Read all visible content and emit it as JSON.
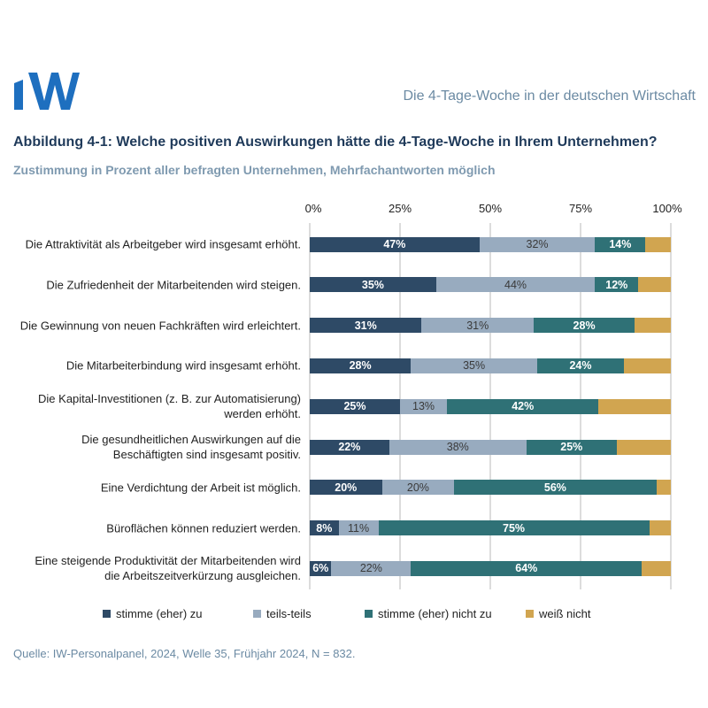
{
  "header": {
    "logo_text": "IW",
    "title": "Die 4-Tage-Woche in der deutschen Wirtschaft"
  },
  "figure": {
    "title": "Abbildung 4-1: Welche positiven Auswirkungen hätte die 4-Tage-Woche in Ihrem Unternehmen?",
    "subtitle": "Zustimmung in Prozent aller befragten Unternehmen, Mehrfachantworten möglich",
    "source": "Quelle: IW-Personalpanel, 2024, Welle 35, Frühjahr 2024, N = 832."
  },
  "chart_data": {
    "type": "bar",
    "orientation": "horizontal",
    "stacked": true,
    "xlim": [
      0,
      100
    ],
    "x_ticks": [
      "0%",
      "25%",
      "50%",
      "75%",
      "100%"
    ],
    "grid": true,
    "legend_position": "bottom",
    "categories": [
      "Die Attraktivität als Arbeitgeber wird insgesamt erhöht.",
      "Die Zufriedenheit der Mitarbeitenden wird steigen.",
      "Die Gewinnung von neuen Fachkräften wird erleichtert.",
      "Die Mitarbeiterbindung wird insgesamt erhöht.",
      "Die Kapital-Investitionen (z. B. zur Automatisierung) werden erhöht.",
      "Die gesundheitlichen Auswirkungen auf die Beschäftigten sind insgesamt positiv.",
      "Eine Verdichtung der Arbeit ist möglich.",
      "Büroflächen können reduziert werden.",
      "Eine steigende Produktivität der Mitarbeitenden wird die Arbeitszeitverkürzung ausgleichen."
    ],
    "series": [
      {
        "name": "stimme (eher) zu",
        "color": "#2e4a66",
        "label_color": "#ffffff",
        "values": [
          47,
          35,
          31,
          28,
          25,
          22,
          20,
          8,
          6
        ],
        "labels_shown": true
      },
      {
        "name": "teils-teils",
        "color": "#98abbf",
        "label_color": "#3a3a3a",
        "values": [
          32,
          44,
          31,
          35,
          13,
          38,
          20,
          11,
          22
        ],
        "labels_shown": true
      },
      {
        "name": "stimme (eher) nicht zu",
        "color": "#2f7176",
        "label_color": "#ffffff",
        "values": [
          14,
          12,
          28,
          24,
          42,
          25,
          56,
          75,
          64
        ],
        "labels_shown": true
      },
      {
        "name": "weiß nicht",
        "color": "#d1a550",
        "label_color": "#ffffff",
        "values": [
          7,
          9,
          10,
          13,
          20,
          15,
          4,
          6,
          8
        ],
        "labels_shown": false
      }
    ]
  }
}
